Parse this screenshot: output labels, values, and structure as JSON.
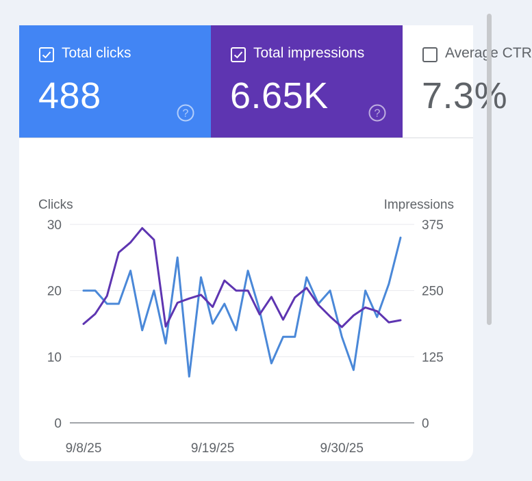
{
  "tiles": [
    {
      "label": "Total clicks",
      "value": "488",
      "checked": true,
      "bg": "#4285f4",
      "fg": "#ffffff"
    },
    {
      "label": "Total impressions",
      "value": "6.65K",
      "checked": true,
      "bg": "#5e35b1",
      "fg": "#ffffff"
    },
    {
      "label": "Average CTR",
      "value": "7.3%",
      "checked": false,
      "bg": "#ffffff",
      "fg": "#5f6368"
    }
  ],
  "icons": {
    "help": "help-circle-icon",
    "check": "check-icon"
  },
  "colors": {
    "clicks_line": "#4a88d8",
    "impressions_line": "#5e35b1",
    "grid": "#e8eaed",
    "baseline": "#80868b"
  },
  "chart_data": {
    "type": "line",
    "left_axis_label": "Clicks",
    "right_axis_label": "Impressions",
    "left_ticks": [
      "0",
      "10",
      "20",
      "30"
    ],
    "right_ticks": [
      "0",
      "125",
      "250",
      "375"
    ],
    "left_ylim": [
      0,
      30
    ],
    "right_ylim": [
      0,
      375
    ],
    "x_tick_labels": [
      "9/8/25",
      "9/19/25",
      "9/30/25"
    ],
    "x": [
      "9/8/25",
      "9/9/25",
      "9/10/25",
      "9/11/25",
      "9/12/25",
      "9/13/25",
      "9/14/25",
      "9/15/25",
      "9/16/25",
      "9/17/25",
      "9/18/25",
      "9/19/25",
      "9/20/25",
      "9/21/25",
      "9/22/25",
      "9/23/25",
      "9/24/25",
      "9/25/25",
      "9/26/25",
      "9/27/25",
      "9/28/25",
      "9/29/25",
      "9/30/25",
      "10/1/25",
      "10/2/25",
      "10/3/25",
      "10/4/25",
      "10/5/25"
    ],
    "grid": true,
    "series": [
      {
        "axis": "left",
        "values": [
          20,
          20,
          18,
          18,
          23,
          14,
          20,
          12,
          25,
          7,
          22,
          15,
          18,
          14,
          23,
          17,
          9,
          13,
          13,
          22,
          18,
          20,
          13,
          8,
          20,
          16,
          21,
          28
        ]
      },
      {
        "axis": "right",
        "values": [
          187,
          206,
          240,
          322,
          341,
          368,
          346,
          182,
          227,
          235,
          242,
          219,
          269,
          250,
          250,
          205,
          238,
          195,
          237,
          255,
          223,
          201,
          181,
          203,
          218,
          211,
          190,
          194
        ]
      }
    ]
  }
}
